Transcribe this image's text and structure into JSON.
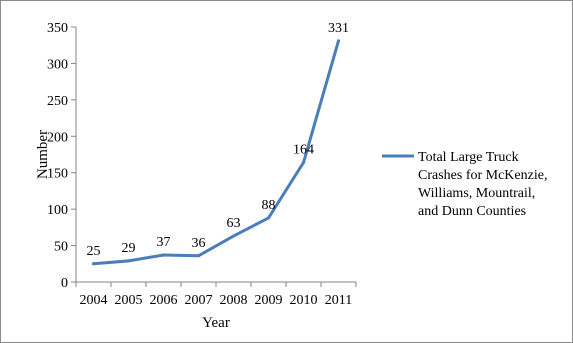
{
  "chart_data": {
    "type": "line",
    "title": "",
    "xlabel": "Year",
    "ylabel": "Number",
    "categories": [
      "2004",
      "2005",
      "2006",
      "2007",
      "2008",
      "2009",
      "2010",
      "2011"
    ],
    "series": [
      {
        "name": "Total Large Truck Crashes for McKenzie, Williams, Mountrail, and Dunn Counties",
        "legend_lines": [
          "Total Large Truck",
          "Crashes for McKenzie,",
          "Williams, Mountrail,",
          "and Dunn Counties"
        ],
        "values": [
          25,
          29,
          37,
          36,
          63,
          88,
          164,
          331
        ],
        "data_labels": [
          "25",
          "29",
          "37",
          "36",
          "63",
          "88",
          "164",
          "331"
        ],
        "color": "#4a7ebb"
      }
    ],
    "ylim": [
      0,
      350
    ],
    "yticks": [
      "0",
      "50",
      "100",
      "150",
      "200",
      "250",
      "300",
      "350"
    ],
    "grid": false,
    "legend_position": "right"
  }
}
